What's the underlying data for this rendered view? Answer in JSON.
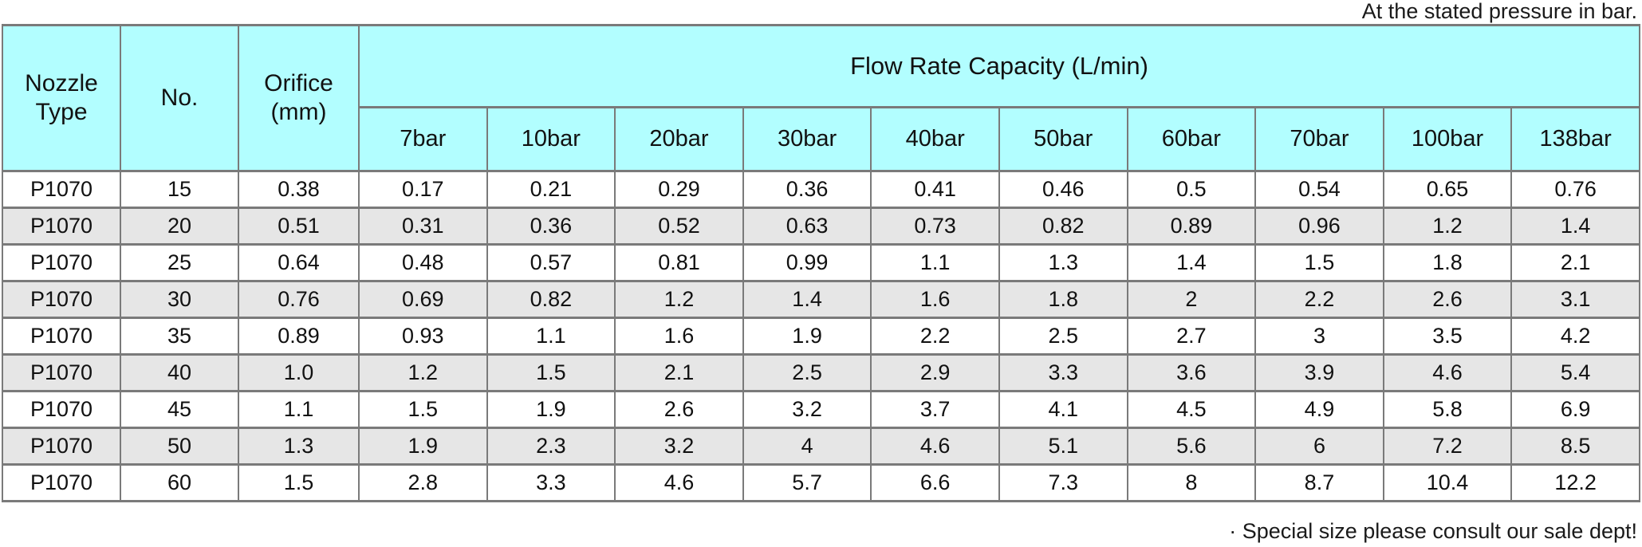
{
  "annotations": {
    "top_note": "At the stated pressure in bar.",
    "footer_note": "· Special size please consult our sale dept!"
  },
  "colors": {
    "header_bg": "#b2feff",
    "alt_row_bg": "#e6e6e6",
    "border": "#7a7a7a"
  },
  "table": {
    "header": {
      "nozzle_type": "Nozzle Type",
      "no": "No.",
      "orifice": "Orifice (mm)",
      "flow_rate_group": "Flow Rate Capacity (L/min)",
      "pressure_columns": [
        "7bar",
        "10bar",
        "20bar",
        "30bar",
        "40bar",
        "50bar",
        "60bar",
        "70bar",
        "100bar",
        "138bar"
      ]
    },
    "rows": [
      {
        "nozzle_type": "P1070",
        "no": "15",
        "orifice": "0.38",
        "flow": [
          "0.17",
          "0.21",
          "0.29",
          "0.36",
          "0.41",
          "0.46",
          "0.5",
          "0.54",
          "0.65",
          "0.76"
        ]
      },
      {
        "nozzle_type": "P1070",
        "no": "20",
        "orifice": "0.51",
        "flow": [
          "0.31",
          "0.36",
          "0.52",
          "0.63",
          "0.73",
          "0.82",
          "0.89",
          "0.96",
          "1.2",
          "1.4"
        ]
      },
      {
        "nozzle_type": "P1070",
        "no": "25",
        "orifice": "0.64",
        "flow": [
          "0.48",
          "0.57",
          "0.81",
          "0.99",
          "1.1",
          "1.3",
          "1.4",
          "1.5",
          "1.8",
          "2.1"
        ]
      },
      {
        "nozzle_type": "P1070",
        "no": "30",
        "orifice": "0.76",
        "flow": [
          "0.69",
          "0.82",
          "1.2",
          "1.4",
          "1.6",
          "1.8",
          "2",
          "2.2",
          "2.6",
          "3.1"
        ]
      },
      {
        "nozzle_type": "P1070",
        "no": "35",
        "orifice": "0.89",
        "flow": [
          "0.93",
          "1.1",
          "1.6",
          "1.9",
          "2.2",
          "2.5",
          "2.7",
          "3",
          "3.5",
          "4.2"
        ]
      },
      {
        "nozzle_type": "P1070",
        "no": "40",
        "orifice": "1.0",
        "flow": [
          "1.2",
          "1.5",
          "2.1",
          "2.5",
          "2.9",
          "3.3",
          "3.6",
          "3.9",
          "4.6",
          "5.4"
        ]
      },
      {
        "nozzle_type": "P1070",
        "no": "45",
        "orifice": "1.1",
        "flow": [
          "1.5",
          "1.9",
          "2.6",
          "3.2",
          "3.7",
          "4.1",
          "4.5",
          "4.9",
          "5.8",
          "6.9"
        ]
      },
      {
        "nozzle_type": "P1070",
        "no": "50",
        "orifice": "1.3",
        "flow": [
          "1.9",
          "2.3",
          "3.2",
          "4",
          "4.6",
          "5.1",
          "5.6",
          "6",
          "7.2",
          "8.5"
        ]
      },
      {
        "nozzle_type": "P1070",
        "no": "60",
        "orifice": "1.5",
        "flow": [
          "2.8",
          "3.3",
          "4.6",
          "5.7",
          "6.6",
          "7.3",
          "8",
          "8.7",
          "10.4",
          "12.2"
        ]
      }
    ]
  }
}
